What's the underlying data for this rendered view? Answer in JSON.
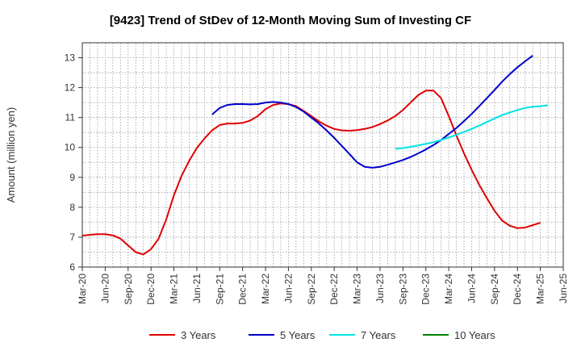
{
  "chart_data": {
    "type": "line",
    "title": "[9423]  Trend of StDev of 12-Month Moving Sum of Investing CF",
    "xlabel": "",
    "ylabel": "Amount (million yen)",
    "ylim": [
      6,
      13.5
    ],
    "yticks": [
      6,
      7,
      8,
      9,
      10,
      11,
      12,
      13
    ],
    "xticks": [
      "Mar-20",
      "Jun-20",
      "Sep-20",
      "Dec-20",
      "Mar-21",
      "Jun-21",
      "Sep-21",
      "Dec-21",
      "Mar-22",
      "Jun-22",
      "Sep-22",
      "Dec-22",
      "Mar-23",
      "Jun-23",
      "Sep-23",
      "Dec-23",
      "Mar-24",
      "Jun-24",
      "Sep-24",
      "Dec-24",
      "Mar-25",
      "Jun-25"
    ],
    "grid": true,
    "legend_position": "bottom",
    "series": [
      {
        "name": "3 Years",
        "color": "#e00000",
        "start": "Mar-20",
        "values": [
          7.05,
          7.08,
          7.1,
          7.1,
          7.06,
          6.95,
          6.72,
          6.5,
          6.42,
          6.6,
          6.95,
          7.6,
          8.4,
          9.05,
          9.55,
          9.98,
          10.3,
          10.57,
          10.75,
          10.8,
          10.8,
          10.82,
          10.9,
          11.05,
          11.28,
          11.42,
          11.47,
          11.45,
          11.38,
          11.22,
          11.05,
          10.87,
          10.73,
          10.62,
          10.57,
          10.56,
          10.58,
          10.62,
          10.68,
          10.78,
          10.9,
          11.05,
          11.25,
          11.5,
          11.75,
          11.9,
          11.9,
          11.65,
          11.05,
          10.4,
          9.8,
          9.25,
          8.75,
          8.3,
          7.88,
          7.55,
          7.38,
          7.3,
          7.32,
          7.4,
          7.48
        ]
      },
      {
        "name": "5 Years",
        "color": "#0000cc",
        "start": "Aug-21",
        "values": [
          11.1,
          11.32,
          11.42,
          11.45,
          11.45,
          11.44,
          11.45,
          11.5,
          11.52,
          11.5,
          11.45,
          11.35,
          11.2,
          11.0,
          10.8,
          10.57,
          10.32,
          10.05,
          9.78,
          9.5,
          9.35,
          9.32,
          9.35,
          9.42,
          9.5,
          9.58,
          9.68,
          9.8,
          9.93,
          10.08,
          10.25,
          10.45,
          10.65,
          10.88,
          11.12,
          11.38,
          11.65,
          11.92,
          12.2,
          12.45,
          12.68,
          12.88,
          13.07
        ]
      },
      {
        "name": "7 Years",
        "color": "#00e5e5",
        "start": "Aug-23",
        "values": [
          9.95,
          9.98,
          10.02,
          10.07,
          10.12,
          10.18,
          10.25,
          10.33,
          10.42,
          10.52,
          10.62,
          10.73,
          10.85,
          10.97,
          11.08,
          11.17,
          11.25,
          11.32,
          11.36,
          11.38,
          11.41
        ]
      },
      {
        "name": "10 Years",
        "color": "#008000",
        "start": "",
        "values": []
      }
    ]
  }
}
